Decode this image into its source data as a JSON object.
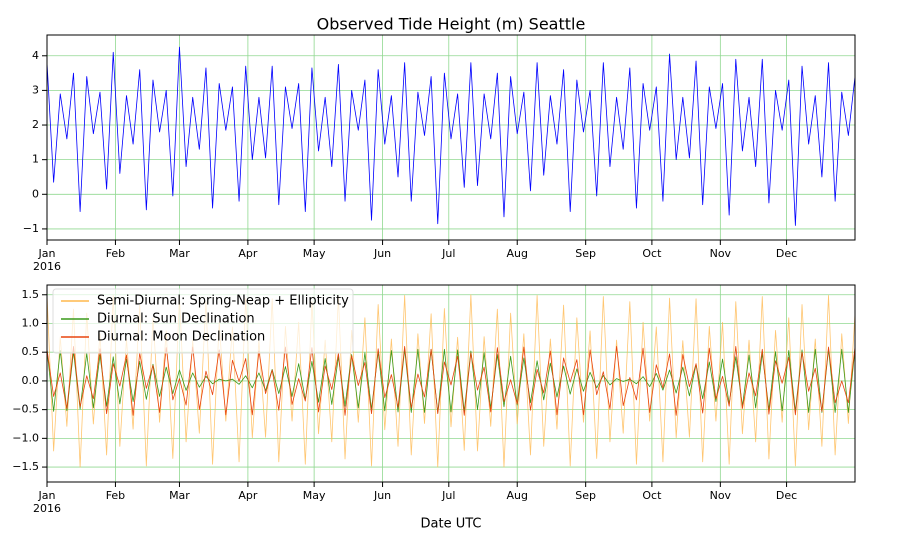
{
  "chart_data": [
    {
      "type": "line",
      "title": "Observed Tide Height (m) Seattle",
      "x": [
        0,
        3,
        6,
        9,
        12,
        15,
        18,
        21,
        24,
        27,
        30,
        33,
        36,
        39,
        42,
        45,
        48,
        51,
        54,
        57,
        60,
        63,
        66,
        69,
        72,
        75,
        78,
        81,
        84,
        87,
        90,
        93,
        96,
        99,
        102,
        105,
        108,
        111,
        114,
        117,
        120,
        123,
        126,
        129,
        132,
        135,
        138,
        141,
        144,
        147,
        150,
        153,
        156,
        159,
        162,
        165,
        168,
        171,
        174,
        177,
        180,
        183,
        186,
        189,
        192,
        195,
        198,
        201,
        204,
        207,
        210,
        213,
        216,
        219,
        222,
        225,
        228,
        231,
        234,
        237,
        240,
        243,
        246,
        249,
        252,
        255,
        258,
        261,
        264,
        267,
        270,
        273,
        276,
        279,
        282,
        285,
        288,
        291,
        294,
        297,
        300,
        303,
        306,
        309,
        312,
        315,
        318,
        321,
        324,
        327,
        330,
        333,
        336,
        339,
        342,
        345,
        348,
        351,
        354,
        357,
        360,
        363,
        366
      ],
      "series": [
        {
          "color": "#0000ff",
          "values": [
            3.8,
            0.35,
            2.9,
            1.6,
            3.5,
            -0.5,
            3.4,
            1.75,
            2.95,
            0.15,
            4.1,
            0.6,
            2.85,
            1.45,
            3.6,
            -0.45,
            3.3,
            1.8,
            3.0,
            -0.05,
            4.25,
            0.8,
            2.8,
            1.3,
            3.65,
            -0.4,
            3.2,
            1.85,
            3.1,
            -0.2,
            3.7,
            1.0,
            2.8,
            1.05,
            3.7,
            -0.3,
            3.1,
            1.9,
            3.2,
            -0.5,
            3.65,
            1.25,
            2.8,
            0.8,
            3.75,
            -0.2,
            3.0,
            1.85,
            3.3,
            -0.75,
            3.6,
            1.45,
            2.85,
            0.5,
            3.8,
            -0.2,
            2.95,
            1.7,
            3.4,
            -0.85,
            3.5,
            1.6,
            2.9,
            0.2,
            3.8,
            0.25,
            2.9,
            1.6,
            3.5,
            -0.65,
            3.4,
            1.75,
            2.95,
            0.1,
            3.8,
            0.55,
            2.85,
            1.45,
            3.6,
            -0.5,
            3.3,
            1.8,
            3.0,
            -0.05,
            3.8,
            0.8,
            2.8,
            1.3,
            3.65,
            -0.4,
            3.2,
            1.85,
            3.1,
            -0.2,
            4.05,
            1.0,
            2.8,
            1.05,
            3.85,
            -0.3,
            3.1,
            1.9,
            3.2,
            -0.6,
            3.9,
            1.25,
            2.8,
            0.8,
            3.9,
            -0.25,
            3.0,
            1.85,
            3.3,
            -0.9,
            3.7,
            1.45,
            2.85,
            0.5,
            3.8,
            -0.2,
            2.95,
            1.7,
            3.4
          ]
        }
      ],
      "xlim": [
        0,
        366
      ],
      "xticks": [
        {
          "value": 0,
          "label": "Jan"
        },
        {
          "value": 31,
          "label": "Feb"
        },
        {
          "value": 60,
          "label": "Mar"
        },
        {
          "value": 91,
          "label": "Apr"
        },
        {
          "value": 121,
          "label": "May"
        },
        {
          "value": 152,
          "label": "Jun"
        },
        {
          "value": 182,
          "label": "Jul"
        },
        {
          "value": 213,
          "label": "Aug"
        },
        {
          "value": 244,
          "label": "Sep"
        },
        {
          "value": 274,
          "label": "Oct"
        },
        {
          "value": 305,
          "label": "Nov"
        },
        {
          "value": 335,
          "label": "Dec"
        }
      ],
      "xtick_year_label": "2016",
      "ylim": [
        -1.32,
        4.6
      ],
      "yticks": [
        {
          "value": -1,
          "label": "−1"
        },
        0,
        1,
        2,
        3,
        4
      ],
      "grid": true,
      "grid_color": "#90d890"
    },
    {
      "type": "line",
      "xlabel": "Date UTC",
      "x": [
        0,
        3,
        6,
        9,
        12,
        15,
        18,
        21,
        24,
        27,
        30,
        33,
        36,
        39,
        42,
        45,
        48,
        51,
        54,
        57,
        60,
        63,
        66,
        69,
        72,
        75,
        78,
        81,
        84,
        87,
        90,
        93,
        96,
        99,
        102,
        105,
        108,
        111,
        114,
        117,
        120,
        123,
        126,
        129,
        132,
        135,
        138,
        141,
        144,
        147,
        150,
        153,
        156,
        159,
        162,
        165,
        168,
        171,
        174,
        177,
        180,
        183,
        186,
        189,
        192,
        195,
        198,
        201,
        204,
        207,
        210,
        213,
        216,
        219,
        222,
        225,
        228,
        231,
        234,
        237,
        240,
        243,
        246,
        249,
        252,
        255,
        258,
        261,
        264,
        267,
        270,
        273,
        276,
        279,
        282,
        285,
        288,
        291,
        294,
        297,
        300,
        303,
        306,
        309,
        312,
        315,
        318,
        321,
        324,
        327,
        330,
        333,
        336,
        339,
        342,
        345,
        348,
        351,
        354,
        357,
        360,
        363,
        366
      ],
      "series": [
        {
          "name": "Semi-Diurnal: Spring-Neap + Ellipticity",
          "color": "#ffb84d",
          "values": [
            1.5,
            -1.22,
            0.77,
            -0.79,
            1.25,
            -1.5,
            1.18,
            -0.75,
            0.82,
            -1.29,
            1.49,
            -1.14,
            0.73,
            -0.84,
            1.32,
            -1.48,
            1.1,
            -0.72,
            0.87,
            -1.35,
            1.47,
            -1.06,
            0.71,
            -0.91,
            1.38,
            -1.45,
            1.02,
            -0.7,
            0.94,
            -1.41,
            1.44,
            -0.99,
            0.7,
            -0.98,
            1.43,
            -1.41,
            0.95,
            -0.7,
            1.02,
            -1.45,
            1.38,
            -0.92,
            0.71,
            -1.06,
            1.47,
            -1.36,
            0.88,
            -0.72,
            1.1,
            -1.48,
            1.33,
            -0.85,
            0.73,
            -1.14,
            1.49,
            -1.29,
            0.82,
            -0.74,
            1.17,
            -1.5,
            1.26,
            -0.8,
            0.76,
            -1.21,
            1.5,
            -1.22,
            0.77,
            -0.79,
            1.25,
            -1.5,
            1.18,
            -0.75,
            0.82,
            -1.29,
            1.49,
            -1.14,
            0.73,
            -0.84,
            1.32,
            -1.48,
            1.1,
            -0.72,
            0.87,
            -1.35,
            1.47,
            -1.06,
            0.71,
            -0.91,
            1.38,
            -1.45,
            1.02,
            -0.7,
            0.94,
            -1.41,
            1.44,
            -0.99,
            0.7,
            -0.98,
            1.43,
            -1.41,
            0.95,
            -0.7,
            1.02,
            -1.45,
            1.38,
            -0.92,
            0.71,
            -1.06,
            1.47,
            -1.36,
            0.88,
            -0.72,
            1.1,
            -1.48,
            1.33,
            -0.85,
            0.73,
            -1.14,
            1.49,
            -1.29,
            0.82,
            -0.74,
            1.17
          ]
        },
        {
          "name": "Diurnal: Sun Declination",
          "color": "#3a9a1a",
          "values": [
            0.54,
            -0.53,
            0.53,
            -0.52,
            0.51,
            -0.49,
            0.48,
            -0.47,
            0.45,
            -0.44,
            0.42,
            -0.4,
            0.38,
            -0.36,
            0.34,
            -0.32,
            0.29,
            -0.27,
            0.24,
            -0.22,
            0.19,
            -0.165,
            0.14,
            -0.11,
            0.08,
            -0.05,
            0.03,
            0,
            0.03,
            -0.06,
            0.09,
            -0.12,
            0.14,
            -0.17,
            0.2,
            -0.22,
            0.25,
            -0.27,
            0.3,
            -0.32,
            0.34,
            -0.37,
            0.39,
            -0.41,
            0.42,
            -0.44,
            0.46,
            -0.47,
            0.49,
            -0.5,
            0.51,
            -0.52,
            0.53,
            -0.54,
            0.55,
            -0.55,
            0.55,
            -0.55,
            0.55,
            -0.55,
            0.55,
            -0.54,
            0.54,
            -0.53,
            0.52,
            -0.5,
            0.49,
            -0.48,
            0.46,
            -0.45,
            0.43,
            -0.42,
            0.4,
            -0.38,
            0.35,
            -0.33,
            0.31,
            -0.28,
            0.26,
            -0.23,
            0.21,
            -0.18,
            0.15,
            -0.12,
            0.095,
            -0.07,
            0.04,
            -0.01,
            0.03,
            -0.05,
            0.075,
            -0.1,
            0.13,
            -0.16,
            0.19,
            -0.21,
            0.24,
            -0.26,
            0.29,
            -0.31,
            0.33,
            -0.36,
            0.38,
            -0.4,
            0.42,
            -0.44,
            0.45,
            -0.47,
            0.48,
            -0.5,
            0.51,
            -0.52,
            0.53,
            -0.53,
            0.54,
            -0.55,
            0.55,
            -0.55,
            0.55,
            -0.55,
            0.55,
            -0.55,
            0.55
          ]
        },
        {
          "name": "Diurnal: Moon Declination",
          "color": "#e8450f",
          "values": [
            0.55,
            -0.27,
            0.14,
            -0.48,
            0.6,
            -0.45,
            0.09,
            -0.31,
            0.56,
            -0.57,
            0.3,
            -0.09,
            0.45,
            -0.6,
            0.48,
            -0.13,
            0.27,
            -0.55,
            0.58,
            -0.33,
            0.04,
            -0.42,
            0.59,
            -0.5,
            0.17,
            -0.24,
            0.54,
            -0.59,
            0.36,
            -0.01,
            0.39,
            -0.59,
            0.52,
            -0.22,
            0.19,
            -0.51,
            0.59,
            -0.41,
            0.04,
            -0.35,
            0.58,
            -0.54,
            0.26,
            -0.15,
            0.48,
            -0.6,
            0.44,
            -0.08,
            0.32,
            -0.57,
            0.56,
            -0.29,
            0.11,
            -0.46,
            0.6,
            -0.47,
            0.12,
            -0.28,
            0.55,
            -0.57,
            0.33,
            -0.07,
            0.43,
            -0.6,
            0.49,
            -0.16,
            0.24,
            -0.54,
            0.58,
            -0.36,
            0.02,
            -0.4,
            0.59,
            -0.51,
            0.2,
            -0.21,
            0.52,
            -0.59,
            0.4,
            -0.02,
            0.37,
            -0.59,
            0.54,
            -0.24,
            0.16,
            -0.49,
            0.6,
            -0.43,
            0.06,
            -0.33,
            0.57,
            -0.55,
            0.28,
            -0.12,
            0.47,
            -0.6,
            0.46,
            -0.1,
            0.3,
            -0.56,
            0.57,
            -0.31,
            0.08,
            -0.44,
            0.6,
            -0.48,
            0.14,
            -0.26,
            0.55,
            -0.58,
            0.35,
            -0.04,
            0.41,
            -0.59,
            0.5,
            -0.18,
            0.22,
            -0.53,
            0.59,
            -0.38,
            0,
            -0.38,
            0.59
          ]
        }
      ],
      "xlim": [
        0,
        366
      ],
      "xticks": [
        {
          "value": 0,
          "label": "Jan"
        },
        {
          "value": 31,
          "label": "Feb"
        },
        {
          "value": 60,
          "label": "Mar"
        },
        {
          "value": 91,
          "label": "Apr"
        },
        {
          "value": 121,
          "label": "May"
        },
        {
          "value": 152,
          "label": "Jun"
        },
        {
          "value": 182,
          "label": "Jul"
        },
        {
          "value": 213,
          "label": "Aug"
        },
        {
          "value": 244,
          "label": "Sep"
        },
        {
          "value": 274,
          "label": "Oct"
        },
        {
          "value": 305,
          "label": "Nov"
        },
        {
          "value": 335,
          "label": "Dec"
        }
      ],
      "xtick_year_label": "2016",
      "ylim": [
        -1.76,
        1.67
      ],
      "yticks": [
        {
          "value": -1.5,
          "label": "−1.5"
        },
        {
          "value": -1,
          "label": "−1.0"
        },
        {
          "value": -0.5,
          "label": "−0.5"
        },
        {
          "value": 0,
          "label": "0.0"
        },
        0.5,
        {
          "value": 1,
          "label": "1.0"
        },
        1.5
      ],
      "grid": true,
      "grid_color": "#90d890",
      "legend": "upper left"
    }
  ]
}
